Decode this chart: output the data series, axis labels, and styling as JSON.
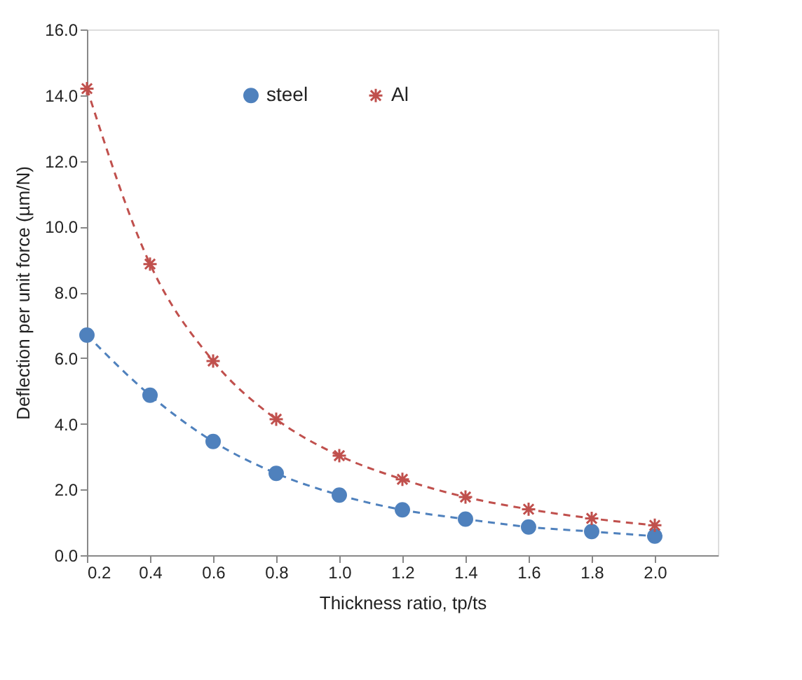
{
  "chart_data": {
    "type": "line",
    "xlabel": "Thickness ratio, tp/ts",
    "ylabel": "Deflection per unit force (µm/N)",
    "x": [
      0.2,
      0.4,
      0.6,
      0.8,
      1.0,
      1.2,
      1.4,
      1.6,
      1.8,
      2.0
    ],
    "series": [
      {
        "name": "steel",
        "color": "#4f81bd",
        "marker": "circle",
        "values": [
          6.7,
          4.87,
          3.46,
          2.49,
          1.83,
          1.38,
          1.1,
          0.86,
          0.72,
          0.58
        ]
      },
      {
        "name": "Al",
        "color": "#c0504d",
        "marker": "cross",
        "values": [
          14.2,
          8.86,
          5.91,
          4.14,
          3.03,
          2.31,
          1.77,
          1.4,
          1.12,
          0.91
        ]
      }
    ],
    "line_style": "dashed",
    "grid": false,
    "legend": "top",
    "xlim": [
      0.2,
      2.2
    ],
    "xticks": [
      0.2,
      0.4,
      0.6,
      0.8,
      {
        "value": 1.0,
        "label": "1.0"
      },
      1.2,
      1.4,
      1.6,
      1.8,
      {
        "value": 2.0,
        "label": "2.0"
      }
    ],
    "ylim": [
      0,
      16
    ],
    "yticks": [
      {
        "value": 0,
        "label": "0.0"
      },
      {
        "value": 2,
        "label": "2.0"
      },
      {
        "value": 4,
        "label": "4.0"
      },
      {
        "value": 6,
        "label": "6.0"
      },
      {
        "value": 8,
        "label": "8.0"
      },
      {
        "value": 10,
        "label": "10.0"
      },
      {
        "value": 12,
        "label": "12.0"
      },
      {
        "value": 14,
        "label": "14.0"
      },
      {
        "value": 16,
        "label": "16.0"
      }
    ]
  }
}
